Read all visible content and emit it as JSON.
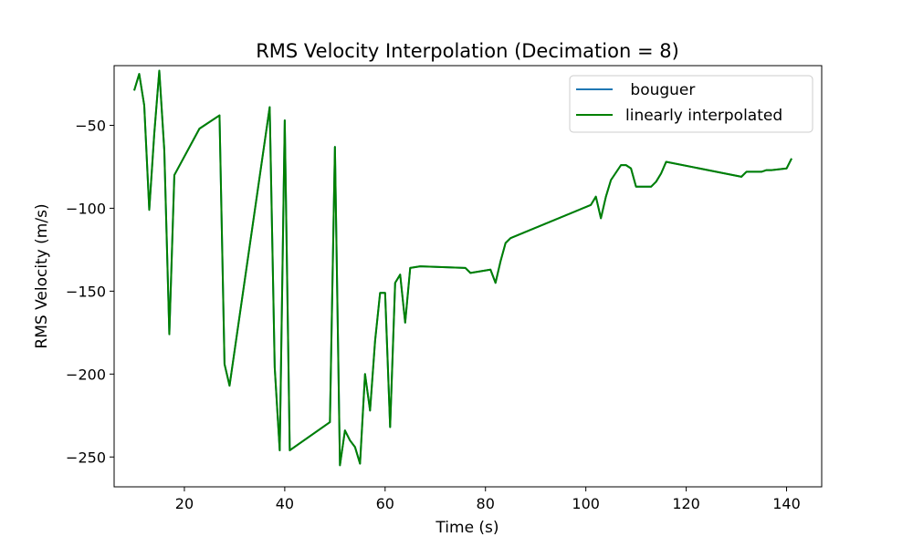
{
  "chart_data": {
    "type": "line",
    "title": "RMS Velocity Interpolation (Decimation = 8)",
    "xlabel": "Time (s)",
    "ylabel": "RMS Velocity (m/s)",
    "xlim": [
      6,
      147
    ],
    "ylim": [
      -268,
      -14
    ],
    "xticks": [
      20,
      40,
      60,
      80,
      100,
      120,
      140
    ],
    "yticks": [
      -250,
      -200,
      -150,
      -100,
      -50
    ],
    "xtick_labels": [
      "20",
      "40",
      "60",
      "80",
      "100",
      "120",
      "140"
    ],
    "ytick_labels": [
      "−250",
      "−200",
      "−150",
      "−100",
      "−50"
    ],
    "grid": false,
    "legend_position": "upper right",
    "series": [
      {
        "name": " bouguer",
        "color": "#1f77b4",
        "x": [
          10,
          11,
          12,
          13,
          14,
          15,
          16,
          17,
          18,
          23,
          27,
          28,
          29,
          37,
          38,
          39,
          40,
          41,
          49,
          50,
          51,
          52,
          53,
          54,
          55,
          56,
          57,
          58,
          59,
          60,
          61,
          62,
          63,
          64,
          65,
          67,
          76,
          77,
          81,
          82,
          83,
          84,
          85,
          101,
          102,
          103,
          104,
          105,
          107,
          108,
          109,
          110,
          112,
          113,
          114,
          115,
          116,
          131,
          132,
          134,
          135,
          136,
          137,
          140,
          141
        ],
        "y": [
          -29,
          -19,
          -38,
          -101,
          -55,
          -17,
          -65,
          -176,
          -80,
          -52,
          -44,
          -194,
          -207,
          -39,
          -196,
          -246,
          -47,
          -246,
          -229,
          -63,
          -255,
          -234,
          -240,
          -244,
          -254,
          -200,
          -222,
          -180,
          -151,
          -151,
          -232,
          -145,
          -140,
          -169,
          -136,
          -135,
          -136,
          -139,
          -137,
          -145,
          -132,
          -121,
          -118,
          -98,
          -93,
          -106,
          -93,
          -83,
          -74,
          -74,
          -76,
          -87,
          -87,
          -87,
          -84,
          -79,
          -72,
          -81,
          -78,
          -78,
          -78,
          -77,
          -77,
          -76,
          -70
        ]
      },
      {
        "name": "linearly interpolated",
        "color": "#008000",
        "x": [
          10,
          11,
          12,
          13,
          14,
          15,
          16,
          17,
          18,
          23,
          27,
          28,
          29,
          37,
          38,
          39,
          40,
          41,
          49,
          50,
          51,
          52,
          53,
          54,
          55,
          56,
          57,
          58,
          59,
          60,
          61,
          62,
          63,
          64,
          65,
          67,
          76,
          77,
          81,
          82,
          83,
          84,
          85,
          101,
          102,
          103,
          104,
          105,
          107,
          108,
          109,
          110,
          112,
          113,
          114,
          115,
          116,
          131,
          132,
          134,
          135,
          136,
          137,
          140,
          141
        ],
        "y": [
          -29,
          -19,
          -38,
          -101,
          -55,
          -17,
          -65,
          -176,
          -80,
          -52,
          -44,
          -194,
          -207,
          -39,
          -196,
          -246,
          -47,
          -246,
          -229,
          -63,
          -255,
          -234,
          -240,
          -244,
          -254,
          -200,
          -222,
          -180,
          -151,
          -151,
          -232,
          -145,
          -140,
          -169,
          -136,
          -135,
          -136,
          -139,
          -137,
          -145,
          -132,
          -121,
          -118,
          -98,
          -93,
          -106,
          -93,
          -83,
          -74,
          -74,
          -76,
          -87,
          -87,
          -87,
          -84,
          -79,
          -72,
          -81,
          -78,
          -78,
          -78,
          -77,
          -77,
          -76,
          -70
        ]
      }
    ]
  }
}
